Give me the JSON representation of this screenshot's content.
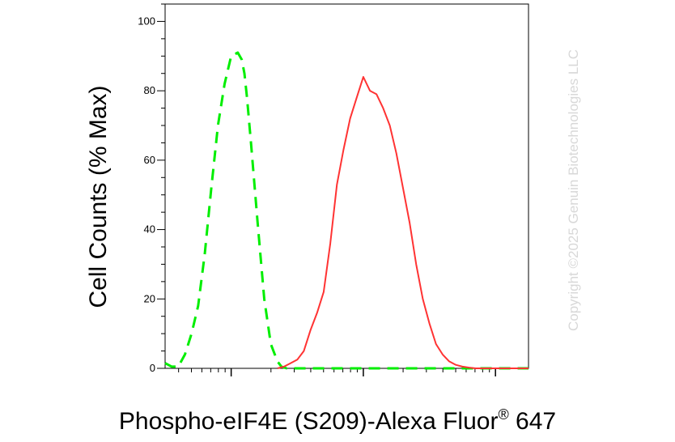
{
  "chart_data": {
    "type": "line",
    "title": "",
    "xlabel": "Phospho-eIF4E (S209)-Alexa Fluor",
    "xlabel_superscript": "®",
    "xlabel_suffix": " 647",
    "ylabel": "Cell Counts (% Max)",
    "ylim": [
      0,
      105
    ],
    "yticks": [
      0,
      20,
      40,
      60,
      80,
      100
    ],
    "ytick_labels": [
      "0",
      "20",
      "40",
      "60",
      "80",
      "100"
    ],
    "x_scale": "log",
    "x_range_decades": [
      0,
      2.75
    ],
    "x_major_ticks": [
      0.5,
      1.5,
      2.5
    ],
    "x_tick_labels_shown": false,
    "grid": false,
    "legend": "none",
    "series": [
      {
        "color": "#00ee00",
        "style": "dashed",
        "x": [
          0.0,
          0.05,
          0.1,
          0.15,
          0.2,
          0.25,
          0.3,
          0.35,
          0.4,
          0.45,
          0.5,
          0.55,
          0.58,
          0.6,
          0.62,
          0.65,
          0.7,
          0.75,
          0.8,
          0.85,
          0.88,
          0.92,
          1.0,
          1.1,
          1.3,
          1.6,
          2.0,
          2.4,
          2.75
        ],
        "y": [
          1.5,
          0.5,
          0.5,
          4,
          10,
          18,
          33,
          52,
          70,
          82,
          90,
          91,
          89,
          85,
          78,
          65,
          42,
          20,
          7,
          2,
          0.5,
          0,
          0,
          0,
          0,
          0,
          0,
          0,
          0
        ]
      },
      {
        "color": "#ff3333",
        "style": "solid",
        "x": [
          0.85,
          0.9,
          0.95,
          1.0,
          1.05,
          1.1,
          1.15,
          1.2,
          1.25,
          1.3,
          1.35,
          1.4,
          1.45,
          1.5,
          1.55,
          1.6,
          1.65,
          1.7,
          1.75,
          1.8,
          1.85,
          1.9,
          1.95,
          2.0,
          2.05,
          2.1,
          2.15,
          2.2,
          2.25,
          2.3,
          2.35,
          2.4,
          2.5,
          2.6,
          2.75
        ],
        "y": [
          0,
          0.5,
          1.5,
          2.5,
          5,
          11,
          16,
          22,
          36,
          53,
          63,
          72,
          78,
          84,
          80,
          79,
          75,
          70,
          62,
          52,
          42,
          30,
          20,
          13,
          7,
          4,
          2,
          1,
          0.5,
          0.2,
          0,
          0,
          0,
          0,
          0
        ]
      }
    ]
  },
  "watermark": {
    "text": "Copyright ©2025 Genuin Biotechnologies LLC",
    "color": "#d8d8d8"
  }
}
